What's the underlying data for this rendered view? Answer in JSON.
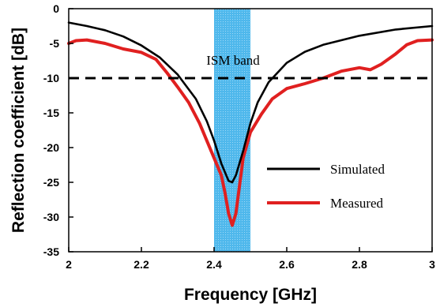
{
  "chart_data": {
    "type": "line",
    "xlabel": "Frequency [GHz]",
    "ylabel": "Reflection coefficient [dB]",
    "xlim": [
      2,
      3
    ],
    "ylim": [
      -35,
      0
    ],
    "x_ticks": [
      2,
      2.2,
      2.4,
      2.6,
      2.8,
      3
    ],
    "x_tick_labels": [
      "2",
      "2.2",
      "2.4",
      "2.6",
      "2.8",
      "3"
    ],
    "y_ticks": [
      0,
      -5,
      -10,
      -15,
      -20,
      -25,
      -30,
      -35
    ],
    "y_tick_labels": [
      "0",
      "-5",
      "-10",
      "-15",
      "-20",
      "-25",
      "-30",
      "-35"
    ],
    "grid": false,
    "legend_position": "center-right",
    "band": {
      "label": "ISM band",
      "x_start": 2.4,
      "x_end": 2.5,
      "color": "#4fb8ec"
    },
    "reference_line": {
      "y": -10,
      "style": "dashed",
      "color": "#000000"
    },
    "series": [
      {
        "name": "Simulated",
        "color": "#000000",
        "x": [
          2.0,
          2.05,
          2.1,
          2.15,
          2.2,
          2.25,
          2.3,
          2.35,
          2.38,
          2.4,
          2.42,
          2.44,
          2.45,
          2.46,
          2.48,
          2.5,
          2.52,
          2.55,
          2.6,
          2.65,
          2.7,
          2.8,
          2.9,
          3.0
        ],
        "y": [
          -2.0,
          -2.5,
          -3.1,
          -4.0,
          -5.3,
          -7.0,
          -9.5,
          -13.0,
          -16.2,
          -19.0,
          -22.3,
          -24.8,
          -25.0,
          -24.0,
          -20.5,
          -16.5,
          -13.5,
          -10.6,
          -7.8,
          -6.2,
          -5.2,
          -3.9,
          -3.0,
          -2.5
        ]
      },
      {
        "name": "Measured",
        "color": "#e02020",
        "x": [
          2.0,
          2.02,
          2.05,
          2.1,
          2.15,
          2.2,
          2.24,
          2.27,
          2.3,
          2.33,
          2.36,
          2.38,
          2.4,
          2.42,
          2.43,
          2.44,
          2.45,
          2.46,
          2.47,
          2.48,
          2.5,
          2.53,
          2.56,
          2.6,
          2.65,
          2.7,
          2.75,
          2.8,
          2.83,
          2.86,
          2.9,
          2.93,
          2.96,
          3.0
        ],
        "y": [
          -5.0,
          -4.6,
          -4.5,
          -5.0,
          -5.8,
          -6.3,
          -7.3,
          -9.2,
          -11.3,
          -13.5,
          -16.5,
          -19.0,
          -21.5,
          -24.0,
          -26.5,
          -29.5,
          -31.2,
          -29.5,
          -25.5,
          -21.5,
          -17.8,
          -15.2,
          -13.0,
          -11.5,
          -10.8,
          -10.0,
          -9.0,
          -8.5,
          -8.8,
          -8.0,
          -6.5,
          -5.2,
          -4.6,
          -4.5
        ]
      }
    ],
    "annotations": [
      {
        "text": "ISM band",
        "x": 2.45,
        "y": -7.5
      }
    ]
  }
}
